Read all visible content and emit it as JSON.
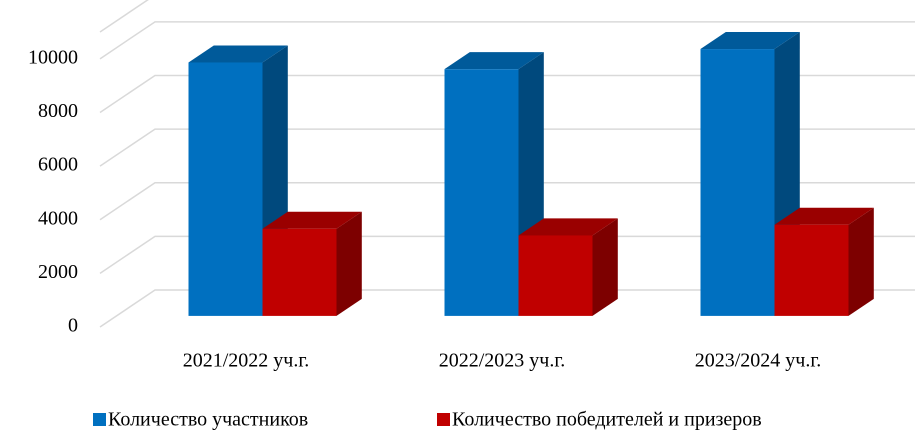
{
  "chart_data": {
    "type": "bar3d",
    "categories": [
      "2021/2022 уч.г.",
      "2022/2023 уч.г.",
      "2023/2024 уч.г."
    ],
    "series": [
      {
        "name": "Количество участников",
        "color": "#0070c0",
        "values": [
          9450,
          9200,
          9950
        ]
      },
      {
        "name": "Количество победителей и призеров",
        "color": "#c00000",
        "values": [
          3250,
          3000,
          3400
        ]
      }
    ],
    "ylim": [
      0,
      11000
    ],
    "yticks": [
      0,
      2000,
      4000,
      6000,
      8000,
      10000
    ],
    "grid": true,
    "legend": "bottom"
  }
}
